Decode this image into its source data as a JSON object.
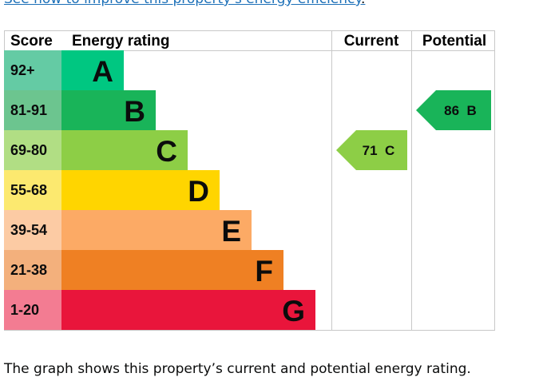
{
  "top_link": {
    "text": "See how to improve this property's energy efficiency",
    "suffix": "."
  },
  "chart_data": {
    "type": "bar",
    "headers": {
      "score": "Score",
      "rating": "Energy rating",
      "current": "Current",
      "potential": "Potential"
    },
    "bands": [
      {
        "letter": "A",
        "range": "92+",
        "color": "#00c781",
        "score_color": "#64cba4"
      },
      {
        "letter": "B",
        "range": "81-91",
        "color": "#19b459",
        "score_color": "#6cc58f"
      },
      {
        "letter": "C",
        "range": "69-80",
        "color": "#8dce46",
        "score_color": "#b1de84"
      },
      {
        "letter": "D",
        "range": "55-68",
        "color": "#ffd500",
        "score_color": "#fce96f"
      },
      {
        "letter": "E",
        "range": "39-54",
        "color": "#fcaa65",
        "score_color": "#fccba4"
      },
      {
        "letter": "F",
        "range": "21-38",
        "color": "#ef8023",
        "score_color": "#f3b07c"
      },
      {
        "letter": "G",
        "range": "1-20",
        "color": "#e9153b",
        "score_color": "#f37c92"
      }
    ],
    "current": {
      "score": 71,
      "band": "C",
      "label": "71  C",
      "color": "#8dce46"
    },
    "potential": {
      "score": 86,
      "band": "B",
      "label": "86  B",
      "color": "#19b459"
    }
  },
  "caption": "The graph shows this property’s current and potential energy rating."
}
